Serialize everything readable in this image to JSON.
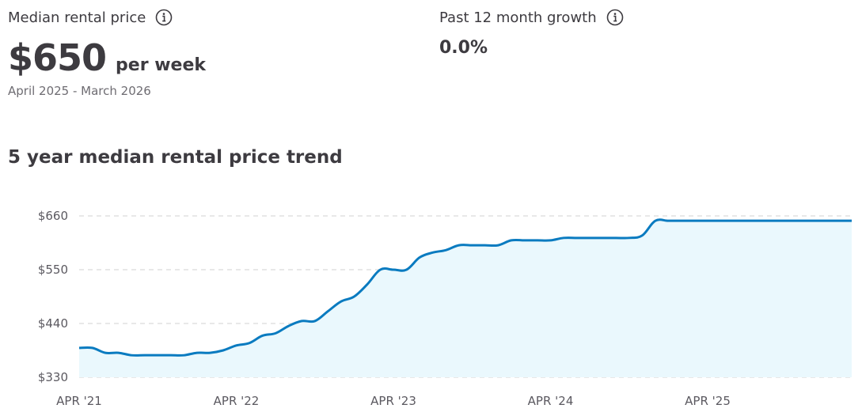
{
  "summary": {
    "median_label": "Median rental price",
    "median_value": "$650",
    "median_unit": "per week",
    "date_range": "April 2025 - March 2026",
    "growth_label": "Past 12 month growth",
    "growth_value": "0.0%"
  },
  "icons": {
    "info": "info-circle-icon"
  },
  "colors": {
    "line": "#0a7bc0",
    "fill": "#eaf8fd",
    "grid": "#d9d9d9",
    "text": "#3d3b40"
  },
  "section_title": "5 year median rental price trend",
  "chart_data": {
    "type": "area",
    "title": "5 year median rental price trend",
    "xlabel": "",
    "ylabel": "",
    "ylim": [
      330,
      660
    ],
    "ytick_values": [
      330,
      440,
      550,
      660
    ],
    "ytick_labels": [
      "$330",
      "$440",
      "$550",
      "$660"
    ],
    "xtick_labels": [
      "APR '21",
      "APR '22",
      "APR '23",
      "APR '24",
      "APR '25"
    ],
    "xtick_dates": [
      "2021-04",
      "2022-04",
      "2023-04",
      "2024-04",
      "2025-04"
    ],
    "grid": true,
    "x": [
      "2021-04",
      "2021-05",
      "2021-06",
      "2021-07",
      "2021-08",
      "2021-09",
      "2021-10",
      "2021-11",
      "2021-12",
      "2022-01",
      "2022-02",
      "2022-03",
      "2022-04",
      "2022-05",
      "2022-06",
      "2022-07",
      "2022-08",
      "2022-09",
      "2022-10",
      "2022-11",
      "2022-12",
      "2023-01",
      "2023-02",
      "2023-03",
      "2023-04",
      "2023-05",
      "2023-06",
      "2023-07",
      "2023-08",
      "2023-09",
      "2023-10",
      "2023-11",
      "2023-12",
      "2024-01",
      "2024-02",
      "2024-03",
      "2024-04",
      "2024-05",
      "2024-06",
      "2024-07",
      "2024-08",
      "2024-09",
      "2024-10",
      "2024-11",
      "2024-12",
      "2025-01",
      "2025-02",
      "2025-03",
      "2025-04",
      "2025-05",
      "2025-06",
      "2025-07",
      "2025-08",
      "2025-09",
      "2025-10",
      "2025-11",
      "2025-12",
      "2026-01",
      "2026-02",
      "2026-03"
    ],
    "values": [
      390,
      390,
      380,
      380,
      375,
      375,
      375,
      375,
      375,
      380,
      380,
      385,
      395,
      400,
      415,
      420,
      435,
      445,
      445,
      465,
      485,
      495,
      520,
      550,
      550,
      550,
      575,
      585,
      590,
      600,
      600,
      600,
      600,
      610,
      610,
      610,
      610,
      615,
      615,
      615,
      615,
      615,
      615,
      620,
      650,
      650,
      650,
      650,
      650,
      650,
      650,
      650,
      650,
      650,
      650,
      650,
      650,
      650,
      650,
      650
    ]
  }
}
